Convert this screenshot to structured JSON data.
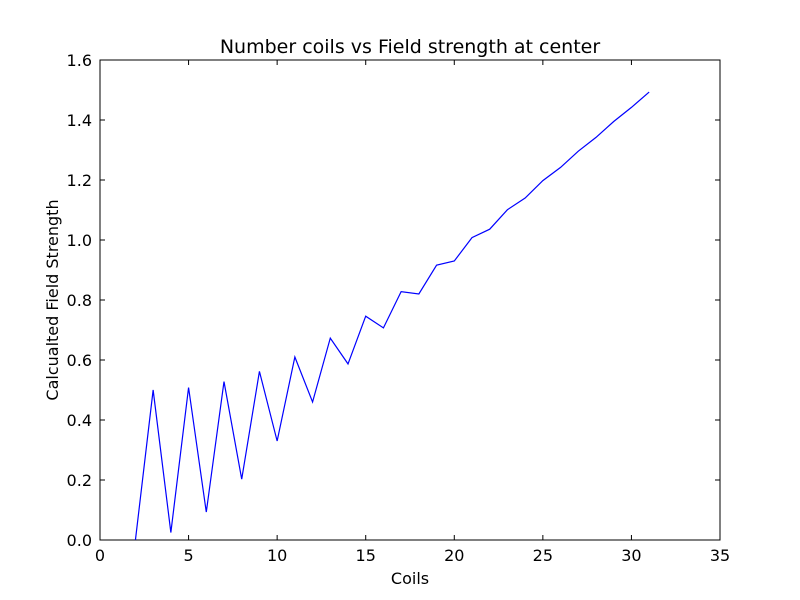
{
  "chart_data": {
    "type": "line",
    "title": "Number coils vs Field strength at center",
    "xlabel": "Coils",
    "ylabel": "Calcualted Field Strength",
    "xlim": [
      0,
      35
    ],
    "ylim": [
      0.0,
      1.6
    ],
    "xticks": [
      0,
      5,
      10,
      15,
      20,
      25,
      30,
      35
    ],
    "xtick_labels": [
      "0",
      "5",
      "10",
      "15",
      "20",
      "25",
      "30",
      "35"
    ],
    "yticks": [
      0.0,
      0.2,
      0.4,
      0.6,
      0.8,
      1.0,
      1.2,
      1.4,
      1.6
    ],
    "ytick_labels": [
      "0.0",
      "0.2",
      "0.4",
      "0.6",
      "0.8",
      "1.0",
      "1.2",
      "1.4",
      "1.6"
    ],
    "grid": false,
    "series": [
      {
        "color": "#0000ff",
        "x": [
          2,
          3,
          4,
          5,
          6,
          7,
          8,
          9,
          10,
          11,
          12,
          13,
          14,
          15,
          16,
          17,
          18,
          19,
          20,
          21,
          22,
          23,
          24,
          25,
          26,
          27,
          28,
          29,
          30,
          31
        ],
        "y": [
          0.0,
          0.5,
          0.025,
          0.508,
          0.093,
          0.528,
          0.203,
          0.562,
          0.33,
          0.61,
          0.46,
          0.673,
          0.587,
          0.746,
          0.707,
          0.828,
          0.82,
          0.916,
          0.93,
          1.008,
          1.036,
          1.101,
          1.14,
          1.198,
          1.242,
          1.296,
          1.342,
          1.395,
          1.442,
          1.493
        ]
      }
    ]
  }
}
